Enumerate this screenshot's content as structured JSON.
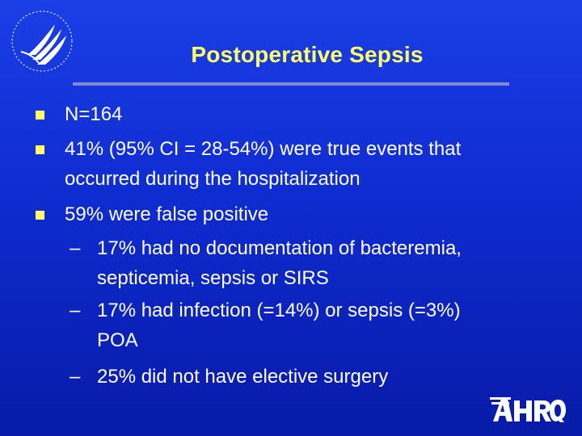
{
  "slide": {
    "title": "Postoperative Sepsis",
    "bullets": [
      {
        "lines": [
          "N=164"
        ]
      },
      {
        "lines": [
          "41% (95% CI = 28-54%) were true events that",
          "occurred during the hospitalization"
        ]
      },
      {
        "lines": [
          "59% were false positive"
        ]
      }
    ],
    "sub_bullets": [
      {
        "lines": [
          "17% had no documentation of bacteremia,",
          "septicemia, sepsis or SIRS"
        ]
      },
      {
        "lines": [
          "17% had infection (=14%) or sepsis (=3%)",
          "POA"
        ]
      },
      {
        "lines": [
          "25% did not have elective surgery"
        ]
      }
    ],
    "sub_bullet_symbol": "–",
    "logos": {
      "agency_seal": "hhs-eagle-seal",
      "agency_wordmark": "ahrq-wordmark"
    }
  },
  "colors": {
    "background_top": "#1a3fe6",
    "background_bottom": "#081ba8",
    "title": "#ffff66",
    "text": "#ffffff",
    "bullet_marker": "#ffff66"
  }
}
